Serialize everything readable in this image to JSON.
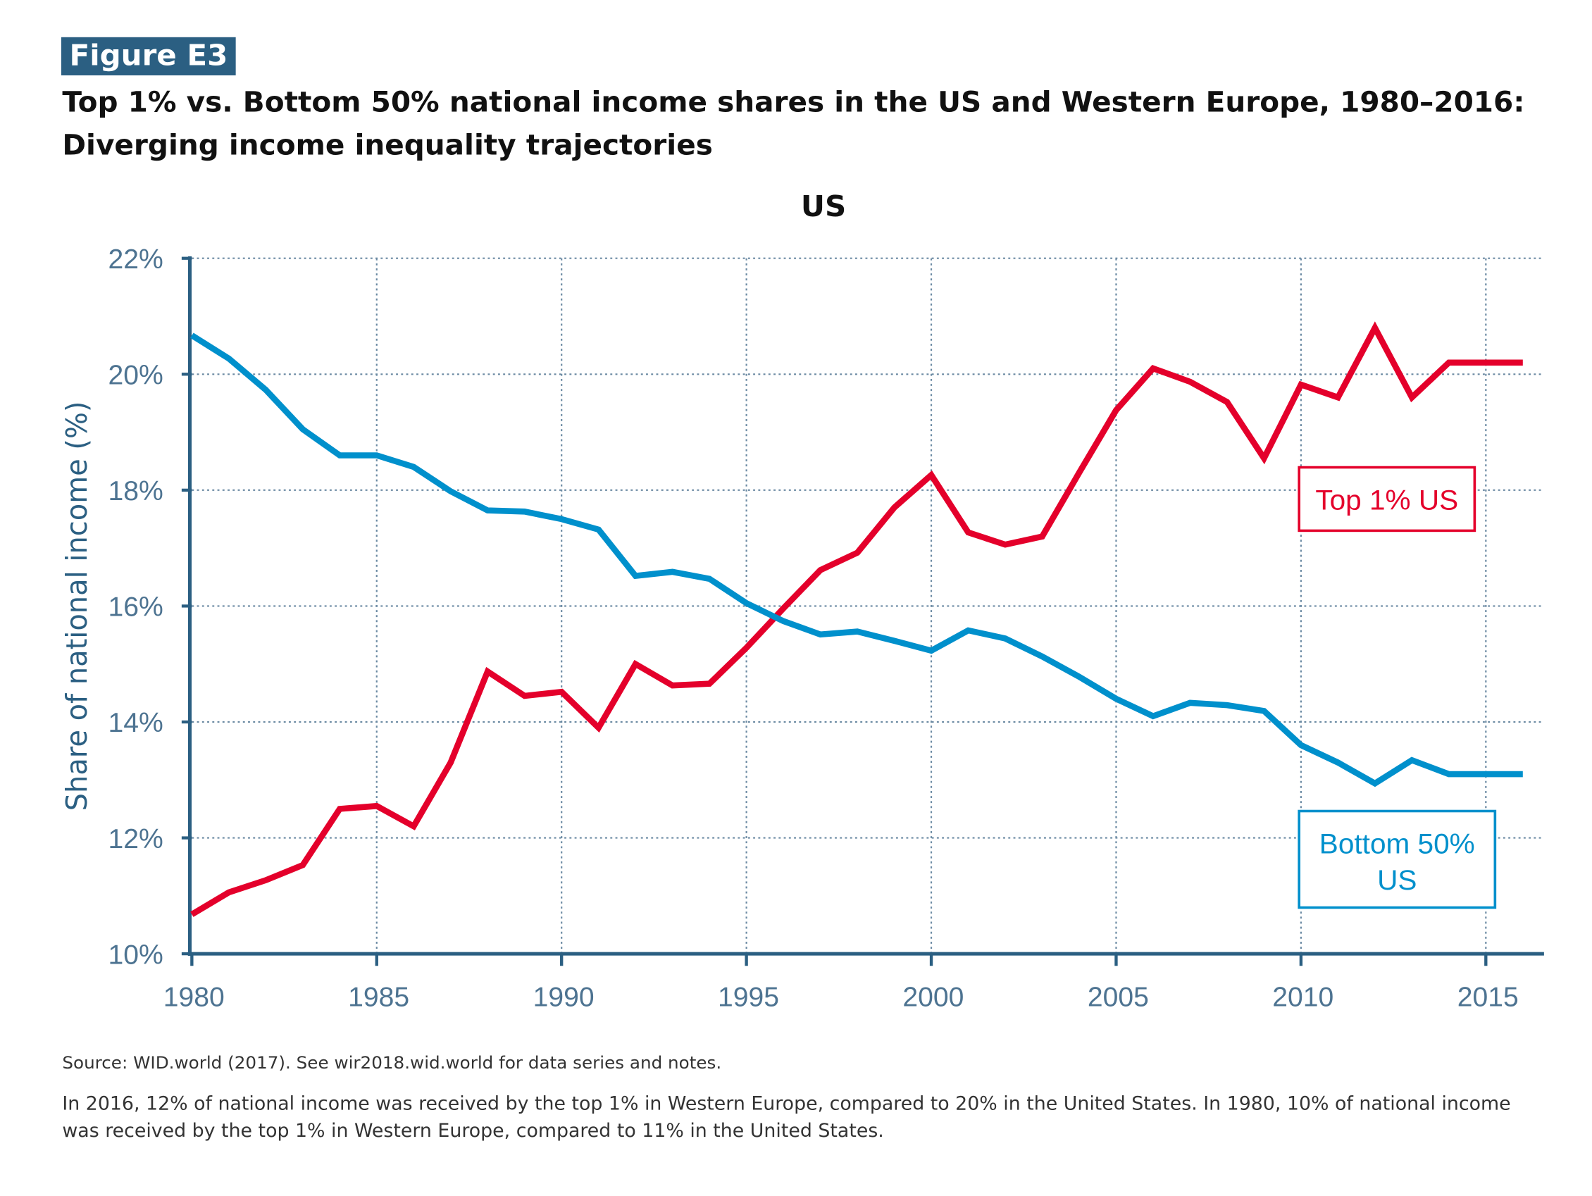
{
  "figure_label": "Figure E3",
  "title": "Top 1% vs. Bottom 50% national income shares in the US and Western Europe, 1980–2016: Diverging income inequality trajectories",
  "source": "Source:  WID.world (2017). See wir2018.wid.world for data series and notes.",
  "note": "In 2016, 12% of national income was received by the top 1% in Western Europe, compared to 20% in the United States. In 1980, 10% of national income was received by the top 1% in Western Europe, compared to 11% in the United States.",
  "colors": {
    "top1": "#e4002b",
    "bottom50": "#0090cc",
    "axis": "#2b5f82",
    "tick": "#4d7391"
  },
  "chart_data": {
    "type": "line",
    "title": "US",
    "xlabel": "",
    "ylabel": "Share of national income (%)",
    "xlim": [
      1980,
      2016
    ],
    "ylim": [
      10,
      22
    ],
    "grid": true,
    "x_ticks": [
      "1980",
      "1985",
      "1990",
      "1995",
      "2000",
      "2005",
      "2010",
      "2015"
    ],
    "y_ticks": [
      "10%",
      "12%",
      "14%",
      "16%",
      "18%",
      "20%",
      "22%"
    ],
    "x": [
      1980,
      1981,
      1982,
      1983,
      1984,
      1985,
      1986,
      1987,
      1988,
      1989,
      1990,
      1991,
      1992,
      1993,
      1994,
      1995,
      1996,
      1997,
      1998,
      1999,
      2000,
      2001,
      2002,
      2003,
      2004,
      2005,
      2006,
      2007,
      2008,
      2009,
      2010,
      2011,
      2012,
      2013,
      2014,
      2015,
      2016
    ],
    "series": [
      {
        "name": "Top 1% US",
        "color": "#e4002b",
        "values": [
          10.68,
          11.06,
          11.27,
          11.53,
          12.5,
          12.55,
          12.2,
          13.3,
          14.87,
          14.45,
          14.52,
          13.9,
          15.0,
          14.63,
          14.66,
          15.28,
          15.96,
          16.62,
          16.92,
          17.7,
          18.26,
          17.27,
          17.06,
          17.2,
          18.3,
          19.38,
          20.1,
          19.87,
          19.52,
          18.55,
          19.82,
          19.6,
          20.8,
          19.6,
          20.2,
          20.2,
          20.2
        ]
      },
      {
        "name": "Bottom 50% US",
        "color": "#0090cc",
        "values": [
          20.67,
          20.27,
          19.73,
          19.05,
          18.6,
          18.6,
          18.4,
          17.98,
          17.65,
          17.63,
          17.5,
          17.32,
          16.52,
          16.59,
          16.47,
          16.05,
          15.74,
          15.51,
          15.56,
          15.4,
          15.23,
          15.58,
          15.44,
          15.13,
          14.78,
          14.4,
          14.1,
          14.33,
          14.29,
          14.19,
          13.6,
          13.3,
          12.94,
          13.34,
          13.1,
          13.1,
          13.1
        ]
      }
    ],
    "annotations": [
      {
        "text": "Top 1% US",
        "series": "Top 1% US"
      },
      {
        "text_line1": "Bottom 50%",
        "text_line2": "US",
        "series": "Bottom 50% US"
      }
    ]
  }
}
